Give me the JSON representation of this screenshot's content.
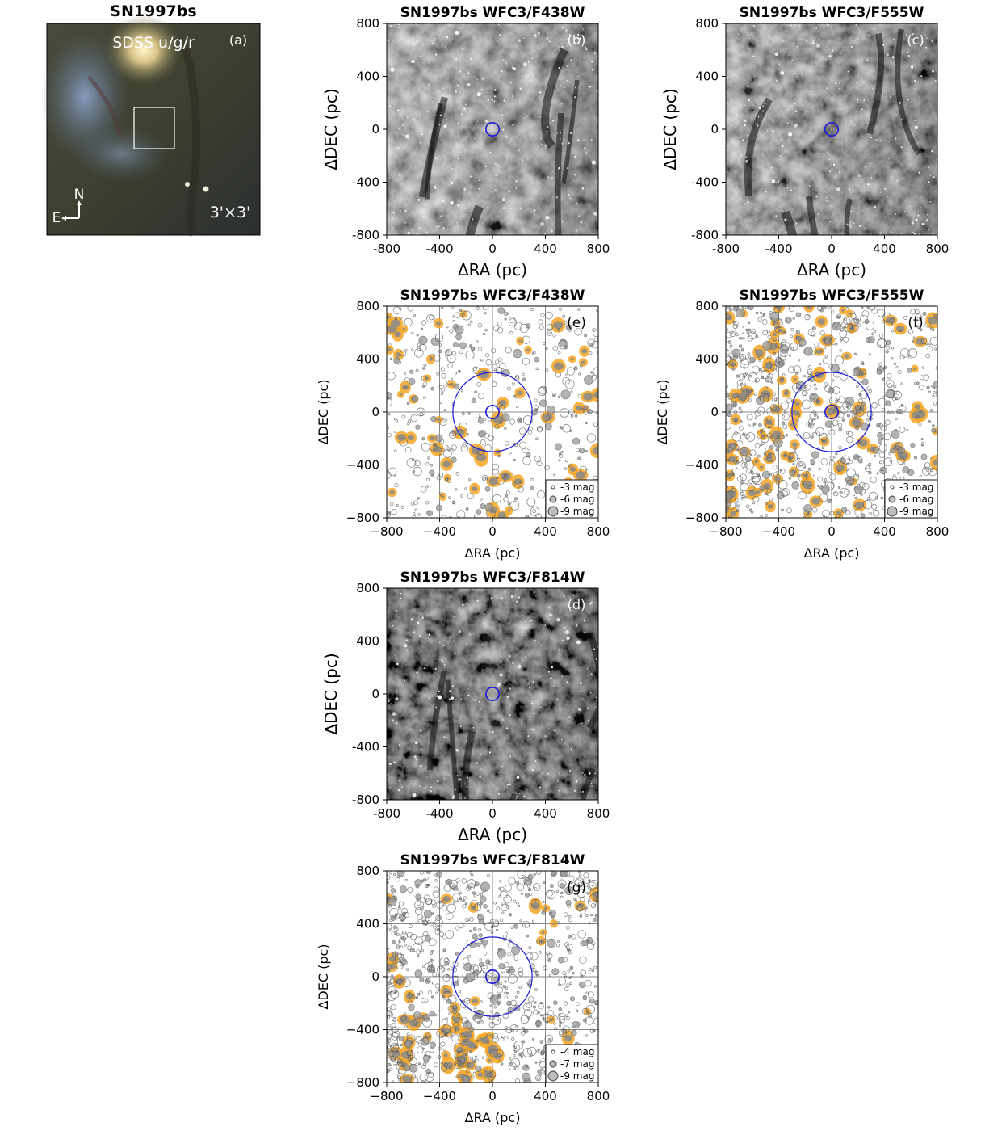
{
  "figure_title": "SN1997bs",
  "sdss": {
    "title": "SN1997bs",
    "label": "SDSS u/g/r",
    "tag": "(a)",
    "compass_n": "N",
    "compass_e": "E",
    "fov": "3'×3'"
  },
  "image_panels": [
    {
      "title": "SN1997bs WFC3/F438W",
      "tag": "(b)",
      "xlabel": "ΔRA (pc)",
      "ylabel": "ΔDEC (pc)"
    },
    {
      "title": "SN1997bs WFC3/F555W",
      "tag": "(c)",
      "xlabel": "ΔRA (pc)",
      "ylabel": "ΔDEC (pc)"
    },
    {
      "title": "SN1997bs WFC3/F814W",
      "tag": "(d)",
      "xlabel": "ΔRA (pc)",
      "ylabel": "ΔDEC (pc)"
    }
  ],
  "map_panels": [
    {
      "title": "SN1997bs WFC3/F438W",
      "tag": "(e)",
      "xlabel": "ΔRA (pc)",
      "ylabel": "ΔDEC (pc)",
      "legend": [
        "-3 mag",
        "-6 mag",
        "-9 mag"
      ]
    },
    {
      "title": "SN1997bs WFC3/F555W",
      "tag": "(f)",
      "xlabel": "ΔRA (pc)",
      "ylabel": "ΔDEC (pc)",
      "legend": [
        "-3 mag",
        "-6 mag",
        "-9 mag"
      ]
    },
    {
      "title": "SN1997bs WFC3/F814W",
      "tag": "(g)",
      "xlabel": "ΔRA (pc)",
      "ylabel": "ΔDEC (pc)",
      "legend": [
        "-4 mag",
        "-7 mag",
        "-9 mag"
      ]
    }
  ],
  "image_ticks": [
    "-800",
    "-400",
    "0",
    "400",
    "800"
  ],
  "map_ticks": [
    "−800",
    "−400",
    "0",
    "400",
    "800"
  ],
  "colors": {
    "sn_marker": "#1a1ad6",
    "cluster_contour": "#f5a623",
    "source_edge": "#555555",
    "grid": "#888888"
  },
  "chart_data": [
    {
      "type": "image",
      "panel": "b",
      "filter": "WFC3/F438W",
      "xlim": [
        -800,
        800
      ],
      "ylim": [
        -800,
        800
      ],
      "markers": [
        {
          "x": 0,
          "y": 0,
          "r": 50
        }
      ]
    },
    {
      "type": "image",
      "panel": "c",
      "filter": "WFC3/F555W",
      "xlim": [
        -800,
        800
      ],
      "ylim": [
        -800,
        800
      ],
      "markers": [
        {
          "x": 0,
          "y": 0,
          "r": 50
        }
      ]
    },
    {
      "type": "image",
      "panel": "d",
      "filter": "WFC3/F814W",
      "xlim": [
        -800,
        800
      ],
      "ylim": [
        -800,
        800
      ],
      "markers": [
        {
          "x": 0,
          "y": 0,
          "r": 50
        }
      ]
    },
    {
      "type": "scatter",
      "panel": "e",
      "filter": "WFC3/F438W",
      "xlim": [
        -800,
        800
      ],
      "ylim": [
        -800,
        800
      ],
      "xticks": [
        -800,
        -400,
        0,
        400,
        800
      ],
      "yticks": [
        -800,
        -400,
        0,
        400,
        800
      ],
      "grid": true,
      "sn_circles": [
        {
          "x": 0,
          "y": 0,
          "r": 50
        },
        {
          "x": 0,
          "y": 0,
          "r": 300
        }
      ],
      "legend_mags": [
        -3,
        -6,
        -9
      ],
      "legend_position": "lower-right",
      "sources_approx": 450
    },
    {
      "type": "scatter",
      "panel": "f",
      "filter": "WFC3/F555W",
      "xlim": [
        -800,
        800
      ],
      "ylim": [
        -800,
        800
      ],
      "xticks": [
        -800,
        -400,
        0,
        400,
        800
      ],
      "yticks": [
        -800,
        -400,
        0,
        400,
        800
      ],
      "grid": true,
      "sn_circles": [
        {
          "x": 0,
          "y": 0,
          "r": 50
        },
        {
          "x": 0,
          "y": 0,
          "r": 300
        }
      ],
      "legend_mags": [
        -3,
        -6,
        -9
      ],
      "legend_position": "lower-right",
      "sources_approx": 800
    },
    {
      "type": "scatter",
      "panel": "g",
      "filter": "WFC3/F814W",
      "xlim": [
        -800,
        800
      ],
      "ylim": [
        -800,
        800
      ],
      "xticks": [
        -800,
        -400,
        0,
        400,
        800
      ],
      "yticks": [
        -800,
        -400,
        0,
        400,
        800
      ],
      "grid": true,
      "sn_circles": [
        {
          "x": 0,
          "y": 0,
          "r": 50
        },
        {
          "x": 0,
          "y": 0,
          "r": 300
        }
      ],
      "legend_mags": [
        -4,
        -7,
        -9
      ],
      "legend_position": "lower-right",
      "sources_approx": 900
    }
  ]
}
